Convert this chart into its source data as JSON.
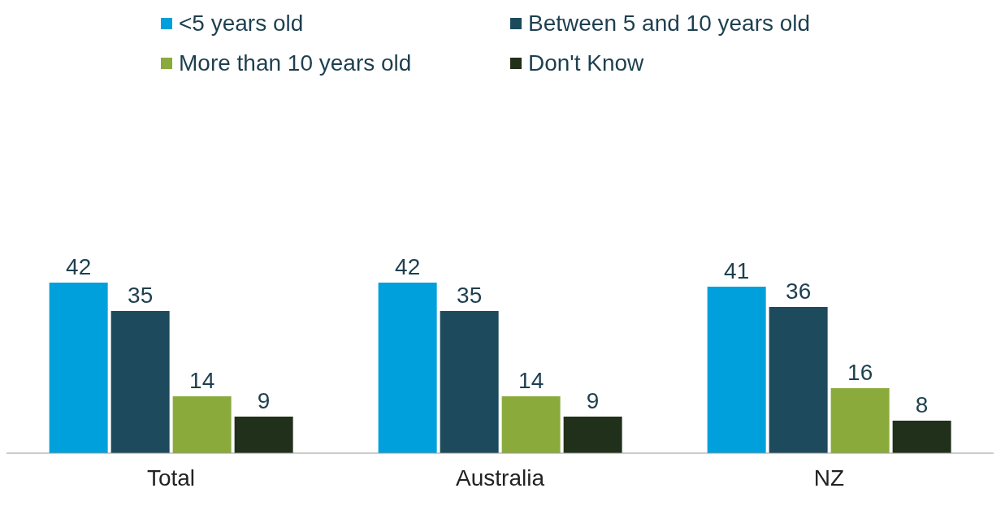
{
  "chart_data": {
    "type": "bar",
    "categories": [
      "Total",
      "Australia",
      "NZ"
    ],
    "series": [
      {
        "name": "<5 years old",
        "color": "#00a0dc",
        "values": [
          42,
          42,
          41
        ]
      },
      {
        "name": "Between 5 and 10 years old",
        "color": "#1d4a5c",
        "values": [
          35,
          35,
          36
        ]
      },
      {
        "name": "More than 10 years old",
        "color": "#8aaa3c",
        "values": [
          14,
          14,
          16
        ]
      },
      {
        "name": "Don't Know",
        "color": "#20301a",
        "values": [
          9,
          9,
          8
        ]
      }
    ],
    "data_labels": true,
    "legend": "top"
  }
}
